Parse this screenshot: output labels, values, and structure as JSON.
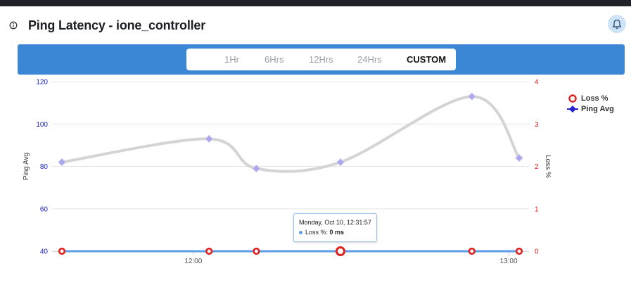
{
  "widget": {
    "title": "Ping Latency - ione_controller",
    "info_icon": "info-icon",
    "bell_icon": "bell-icon"
  },
  "range_selector": {
    "options": [
      "1Hr",
      "6Hrs",
      "12Hrs",
      "24Hrs",
      "CUSTOM"
    ],
    "selected": "CUSTOM"
  },
  "tooltip": {
    "date": "Monday, Oct 10, 12:31:57",
    "series": "Loss %",
    "value": "0 ms"
  },
  "colors": {
    "band": "#3b87d6",
    "ping_line": "#d4d4d4",
    "ping_marker": "#a9a6ee",
    "loss_line": "#5c9be6",
    "loss_marker": "#e0201c",
    "left_axis": "#1a22c8",
    "right_axis": "#e0201c"
  },
  "chart_data": {
    "type": "line",
    "x": [
      "11:35",
      "12:03",
      "12:12",
      "12:28",
      "12:53",
      "13:02"
    ],
    "x_tick_labels": [
      "12:00",
      "13:00"
    ],
    "x_ticks": [
      "12:00",
      "13:00"
    ],
    "left_axis": {
      "label": "Ping Avg",
      "ticks": [
        40,
        60,
        80,
        100,
        120
      ],
      "range": [
        40,
        120
      ]
    },
    "right_axis": {
      "label": "Loss %",
      "ticks": [
        0,
        1,
        2,
        3,
        4
      ],
      "range": [
        0,
        4
      ]
    },
    "series": [
      {
        "name": "Ping Avg",
        "axis": "left",
        "values": [
          82,
          93,
          79,
          82,
          113,
          84
        ]
      },
      {
        "name": "Loss %",
        "axis": "right",
        "values": [
          0,
          0,
          0,
          0,
          0,
          0
        ]
      }
    ],
    "highlight_point_index": 3,
    "legend_position": "right",
    "grid": true
  }
}
